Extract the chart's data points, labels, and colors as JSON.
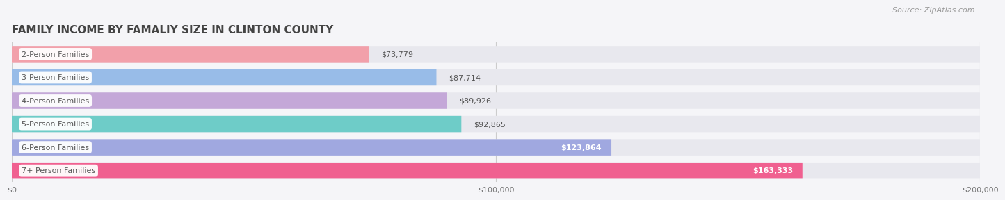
{
  "title": "Family Income by Famaliy Size in Clinton County",
  "title_upper": "FAMILY INCOME BY FAMALIY SIZE IN CLINTON COUNTY",
  "source": "Source: ZipAtlas.com",
  "categories": [
    "2-Person Families",
    "3-Person Families",
    "4-Person Families",
    "5-Person Families",
    "6-Person Families",
    "7+ Person Families"
  ],
  "values": [
    73779,
    87714,
    89926,
    92865,
    123864,
    163333
  ],
  "bar_colors": [
    "#f2a0aa",
    "#98bce8",
    "#c4a8d8",
    "#6eccc8",
    "#a0a8e0",
    "#f06090"
  ],
  "bar_bg_color": "#e8e8ee",
  "value_labels": [
    "$73,779",
    "$87,714",
    "$89,926",
    "$92,865",
    "$123,864",
    "$163,333"
  ],
  "value_inside": [
    false,
    false,
    false,
    false,
    true,
    true
  ],
  "xlim": [
    0,
    200000
  ],
  "xticks": [
    0,
    100000,
    200000
  ],
  "xtick_labels": [
    "$0",
    "$100,000",
    "$200,000"
  ],
  "bg_color": "#f5f5f8",
  "title_fontsize": 11,
  "label_fontsize": 8,
  "value_fontsize": 8,
  "source_fontsize": 8
}
